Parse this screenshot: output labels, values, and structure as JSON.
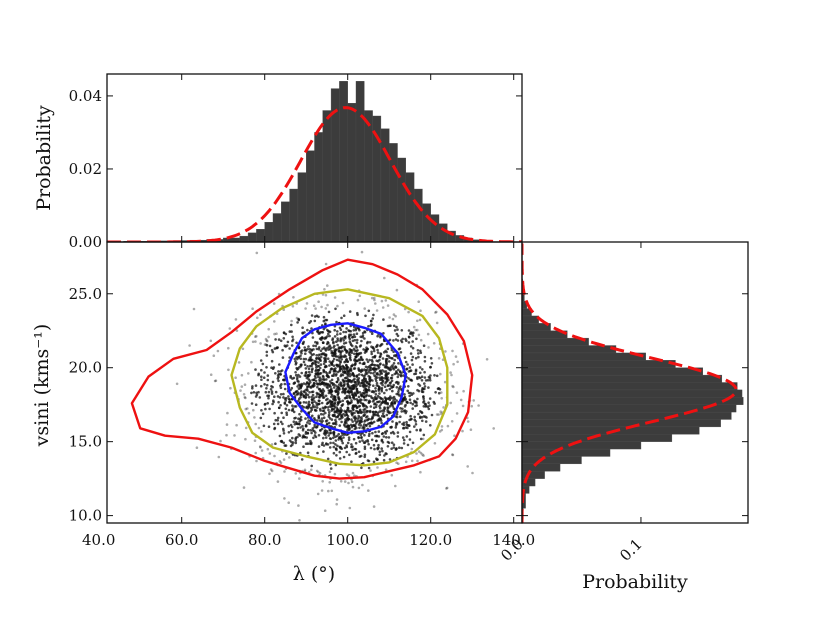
{
  "chart_data": [
    {
      "panel": "top-marginal",
      "type": "bar",
      "ylabel": "Probability",
      "xlim": [
        42,
        142
      ],
      "ylim": [
        0,
        0.046
      ],
      "yticks": [
        0.0,
        0.02,
        0.04
      ],
      "ytick_labels": [
        "0.00",
        "0.02",
        "0.04"
      ],
      "bin_edges": [
        42,
        46,
        50,
        54,
        58,
        62,
        66,
        70,
        74,
        76,
        78,
        80,
        82,
        84,
        86,
        88,
        90,
        92,
        94,
        96,
        98,
        100,
        102,
        104,
        106,
        108,
        110,
        112,
        114,
        116,
        118,
        120,
        122,
        124,
        126,
        128,
        130,
        132,
        134,
        138
      ],
      "values": [
        0.0001,
        0.0002,
        0.0002,
        0.0003,
        0.0004,
        0.0005,
        0.0007,
        0.0011,
        0.0016,
        0.0025,
        0.0035,
        0.0054,
        0.0078,
        0.011,
        0.0145,
        0.019,
        0.025,
        0.03,
        0.036,
        0.042,
        0.044,
        0.038,
        0.044,
        0.036,
        0.0345,
        0.031,
        0.027,
        0.023,
        0.019,
        0.0145,
        0.0105,
        0.0075,
        0.005,
        0.003,
        0.0018,
        0.0011,
        0.0006,
        0.0003,
        0.0001
      ],
      "fit": {
        "style": "red-dashed",
        "mean": 99.5,
        "sigma": 10.8,
        "peak": 0.0368
      }
    },
    {
      "panel": "joint",
      "type": "scatter",
      "xlabel": "λ (°)",
      "ylabel": "vsini (kms⁻¹)",
      "xlim": [
        42,
        142
      ],
      "ylim": [
        9.5,
        28.5
      ],
      "xticks": [
        40,
        60,
        80,
        100,
        120,
        140
      ],
      "xtick_labels": [
        "40.0",
        "60.0",
        "80.0",
        "100.0",
        "120.0",
        "140.0"
      ],
      "yticks": [
        10,
        15,
        20,
        25
      ],
      "ytick_labels": [
        "10.0",
        "15.0",
        "20.0",
        "25.0"
      ],
      "center": {
        "x": 99.5,
        "y": 18.5
      },
      "spread": {
        "x": 10.8,
        "y": 2.6
      },
      "n_points": 2600,
      "contours": [
        {
          "level": "1-sigma",
          "color": "#1a1aff",
          "x": [
            100,
            104,
            108,
            112,
            114,
            113,
            111,
            108,
            104,
            100,
            96,
            92,
            89,
            86,
            85,
            87,
            89,
            92,
            96
          ],
          "y": [
            23.0,
            22.7,
            22.3,
            21.0,
            19.5,
            18.0,
            16.7,
            16.0,
            15.7,
            15.6,
            15.9,
            16.3,
            17.2,
            18.3,
            19.7,
            21.0,
            22.0,
            22.6,
            22.9
          ]
        },
        {
          "level": "2-sigma",
          "color": "#b8b820",
          "x": [
            100,
            110,
            118,
            122,
            124,
            124,
            121,
            116,
            110,
            104,
            98,
            90,
            82,
            77,
            74,
            72,
            74,
            78,
            84,
            92
          ],
          "y": [
            25.3,
            24.7,
            23.5,
            22.0,
            20.0,
            17.5,
            15.5,
            14.3,
            13.6,
            13.4,
            13.5,
            14.0,
            14.6,
            15.6,
            17.3,
            19.5,
            21.3,
            22.8,
            24.0,
            25.0
          ]
        },
        {
          "level": "3-sigma",
          "color": "#ee1111",
          "x": [
            100,
            106,
            112,
            118,
            124,
            128,
            130,
            129,
            126,
            122,
            116,
            110,
            104,
            98,
            92,
            86,
            80,
            72,
            64,
            56,
            50,
            48,
            52,
            58,
            66,
            72,
            78,
            86,
            94
          ],
          "y": [
            27.3,
            27.0,
            26.3,
            25.3,
            23.6,
            21.8,
            19.5,
            17.0,
            15.2,
            14.0,
            13.4,
            13.0,
            12.6,
            12.5,
            12.7,
            13.2,
            13.7,
            14.6,
            15.2,
            15.4,
            15.9,
            17.6,
            19.4,
            20.6,
            21.2,
            22.4,
            23.8,
            25.3,
            26.6
          ]
        }
      ]
    },
    {
      "panel": "right-marginal",
      "type": "bar",
      "orientation": "horizontal",
      "xlabel": "Probability",
      "xlim": [
        0,
        0.19
      ],
      "xticks": [
        0.0,
        0.1
      ],
      "xtick_labels": [
        "0.0",
        "0.1"
      ],
      "ylim": [
        9.5,
        28.5
      ],
      "bin_edges": [
        9.5,
        10.5,
        11.5,
        12.0,
        12.5,
        13.0,
        13.5,
        14.0,
        14.5,
        15.0,
        15.5,
        16.0,
        16.5,
        17.0,
        17.5,
        18.0,
        18.5,
        19.0,
        19.5,
        20.0,
        20.5,
        21.0,
        21.5,
        22.0,
        22.5,
        23.0,
        23.5,
        24.0,
        24.5,
        25.0,
        25.5,
        26.0,
        27.0,
        28.5
      ],
      "values": [
        0.001,
        0.003,
        0.006,
        0.011,
        0.019,
        0.032,
        0.05,
        0.074,
        0.1,
        0.126,
        0.149,
        0.167,
        0.176,
        0.18,
        0.186,
        0.185,
        0.181,
        0.168,
        0.152,
        0.129,
        0.104,
        0.079,
        0.056,
        0.038,
        0.024,
        0.014,
        0.008,
        0.004,
        0.002,
        0.001,
        0.0005,
        0.0002,
        0.0001
      ],
      "fit": {
        "style": "red-dashed",
        "mean": 18.5,
        "sigma": 2.15,
        "peak": 0.18
      }
    }
  ]
}
